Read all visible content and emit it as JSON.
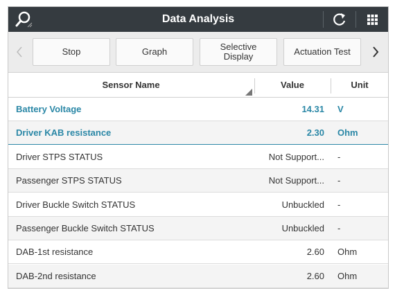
{
  "header": {
    "title": "Data Analysis"
  },
  "toolbar": {
    "buttons": [
      "Stop",
      "Graph",
      "Selective Display",
      "Actuation Test"
    ]
  },
  "table": {
    "columns": [
      "Sensor Name",
      "Value",
      "Unit"
    ],
    "rows": [
      [
        "Battery Voltage",
        "14.31",
        "V"
      ],
      [
        "Driver KAB resistance",
        "2.30",
        "Ohm"
      ],
      [
        "Driver STPS STATUS",
        "Not Support...",
        "-"
      ],
      [
        "Passenger STPS STATUS",
        "Not Support...",
        "-"
      ],
      [
        "Driver Buckle Switch STATUS",
        "Unbuckled",
        "-"
      ],
      [
        "Passenger Buckle Switch STATUS",
        "Unbuckled",
        "-"
      ],
      [
        "DAB-1st resistance",
        "2.60",
        "Ohm"
      ],
      [
        "DAB-2nd resistance",
        "2.60",
        "Ohm"
      ]
    ]
  }
}
